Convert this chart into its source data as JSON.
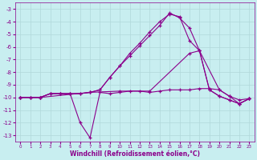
{
  "xlabel": "Windchill (Refroidissement éolien,°C)",
  "background_color": "#c8eef0",
  "line_color": "#8b008b",
  "grid_color": "#b0d8da",
  "xlim": [
    -0.5,
    23.5
  ],
  "ylim": [
    -13.5,
    -2.5
  ],
  "yticks": [
    -3,
    -4,
    -5,
    -6,
    -7,
    -8,
    -9,
    -10,
    -11,
    -12,
    -13
  ],
  "xticks": [
    0,
    1,
    2,
    3,
    4,
    5,
    6,
    7,
    8,
    9,
    10,
    11,
    12,
    13,
    14,
    15,
    16,
    17,
    18,
    19,
    20,
    21,
    22,
    23
  ],
  "series": [
    {
      "x": [
        0,
        1,
        2,
        3,
        4,
        5,
        6,
        7,
        8,
        9,
        10,
        11,
        12,
        13,
        14,
        15,
        16,
        17,
        18,
        19,
        20,
        21,
        22,
        23
      ],
      "y": [
        -10.0,
        -10.0,
        -10.0,
        -9.7,
        -9.7,
        -9.7,
        -12.0,
        -13.2,
        -9.6,
        -9.7,
        -9.6,
        -9.5,
        -9.5,
        -9.6,
        -9.5,
        -9.4,
        -9.4,
        -9.4,
        -9.3,
        -9.3,
        -9.4,
        -9.9,
        -10.5,
        -10.1
      ]
    },
    {
      "x": [
        0,
        1,
        2,
        3,
        4,
        5,
        6,
        7,
        8,
        9,
        10,
        11,
        12,
        13,
        14,
        15,
        16,
        17,
        18,
        19,
        20,
        21,
        22,
        23
      ],
      "y": [
        -10.0,
        -10.0,
        -10.0,
        -9.7,
        -9.7,
        -9.7,
        -9.7,
        -9.6,
        -9.4,
        -8.4,
        -7.5,
        -6.7,
        -5.9,
        -5.1,
        -4.3,
        -3.3,
        -3.7,
        -4.5,
        -6.3,
        -9.4,
        -9.9,
        -10.2,
        -10.5,
        -10.1
      ]
    },
    {
      "x": [
        0,
        2,
        7,
        10,
        13,
        17,
        18,
        20,
        21,
        22,
        23
      ],
      "y": [
        -10.0,
        -10.0,
        -9.6,
        -9.5,
        -9.5,
        -6.5,
        -6.3,
        -9.4,
        -9.9,
        -10.2,
        -10.1
      ]
    },
    {
      "x": [
        0,
        1,
        2,
        3,
        4,
        5,
        6,
        7,
        8,
        9,
        10,
        11,
        12,
        13,
        14,
        15,
        16,
        17,
        18,
        19,
        20,
        21,
        22,
        23
      ],
      "y": [
        -10.0,
        -10.0,
        -10.0,
        -9.7,
        -9.7,
        -9.7,
        -9.7,
        -9.6,
        -9.4,
        -8.4,
        -7.5,
        -6.5,
        -5.7,
        -4.8,
        -4.0,
        -3.4,
        -3.6,
        -5.5,
        -6.3,
        -9.4,
        -9.9,
        -10.2,
        -10.5,
        -10.1
      ]
    }
  ]
}
